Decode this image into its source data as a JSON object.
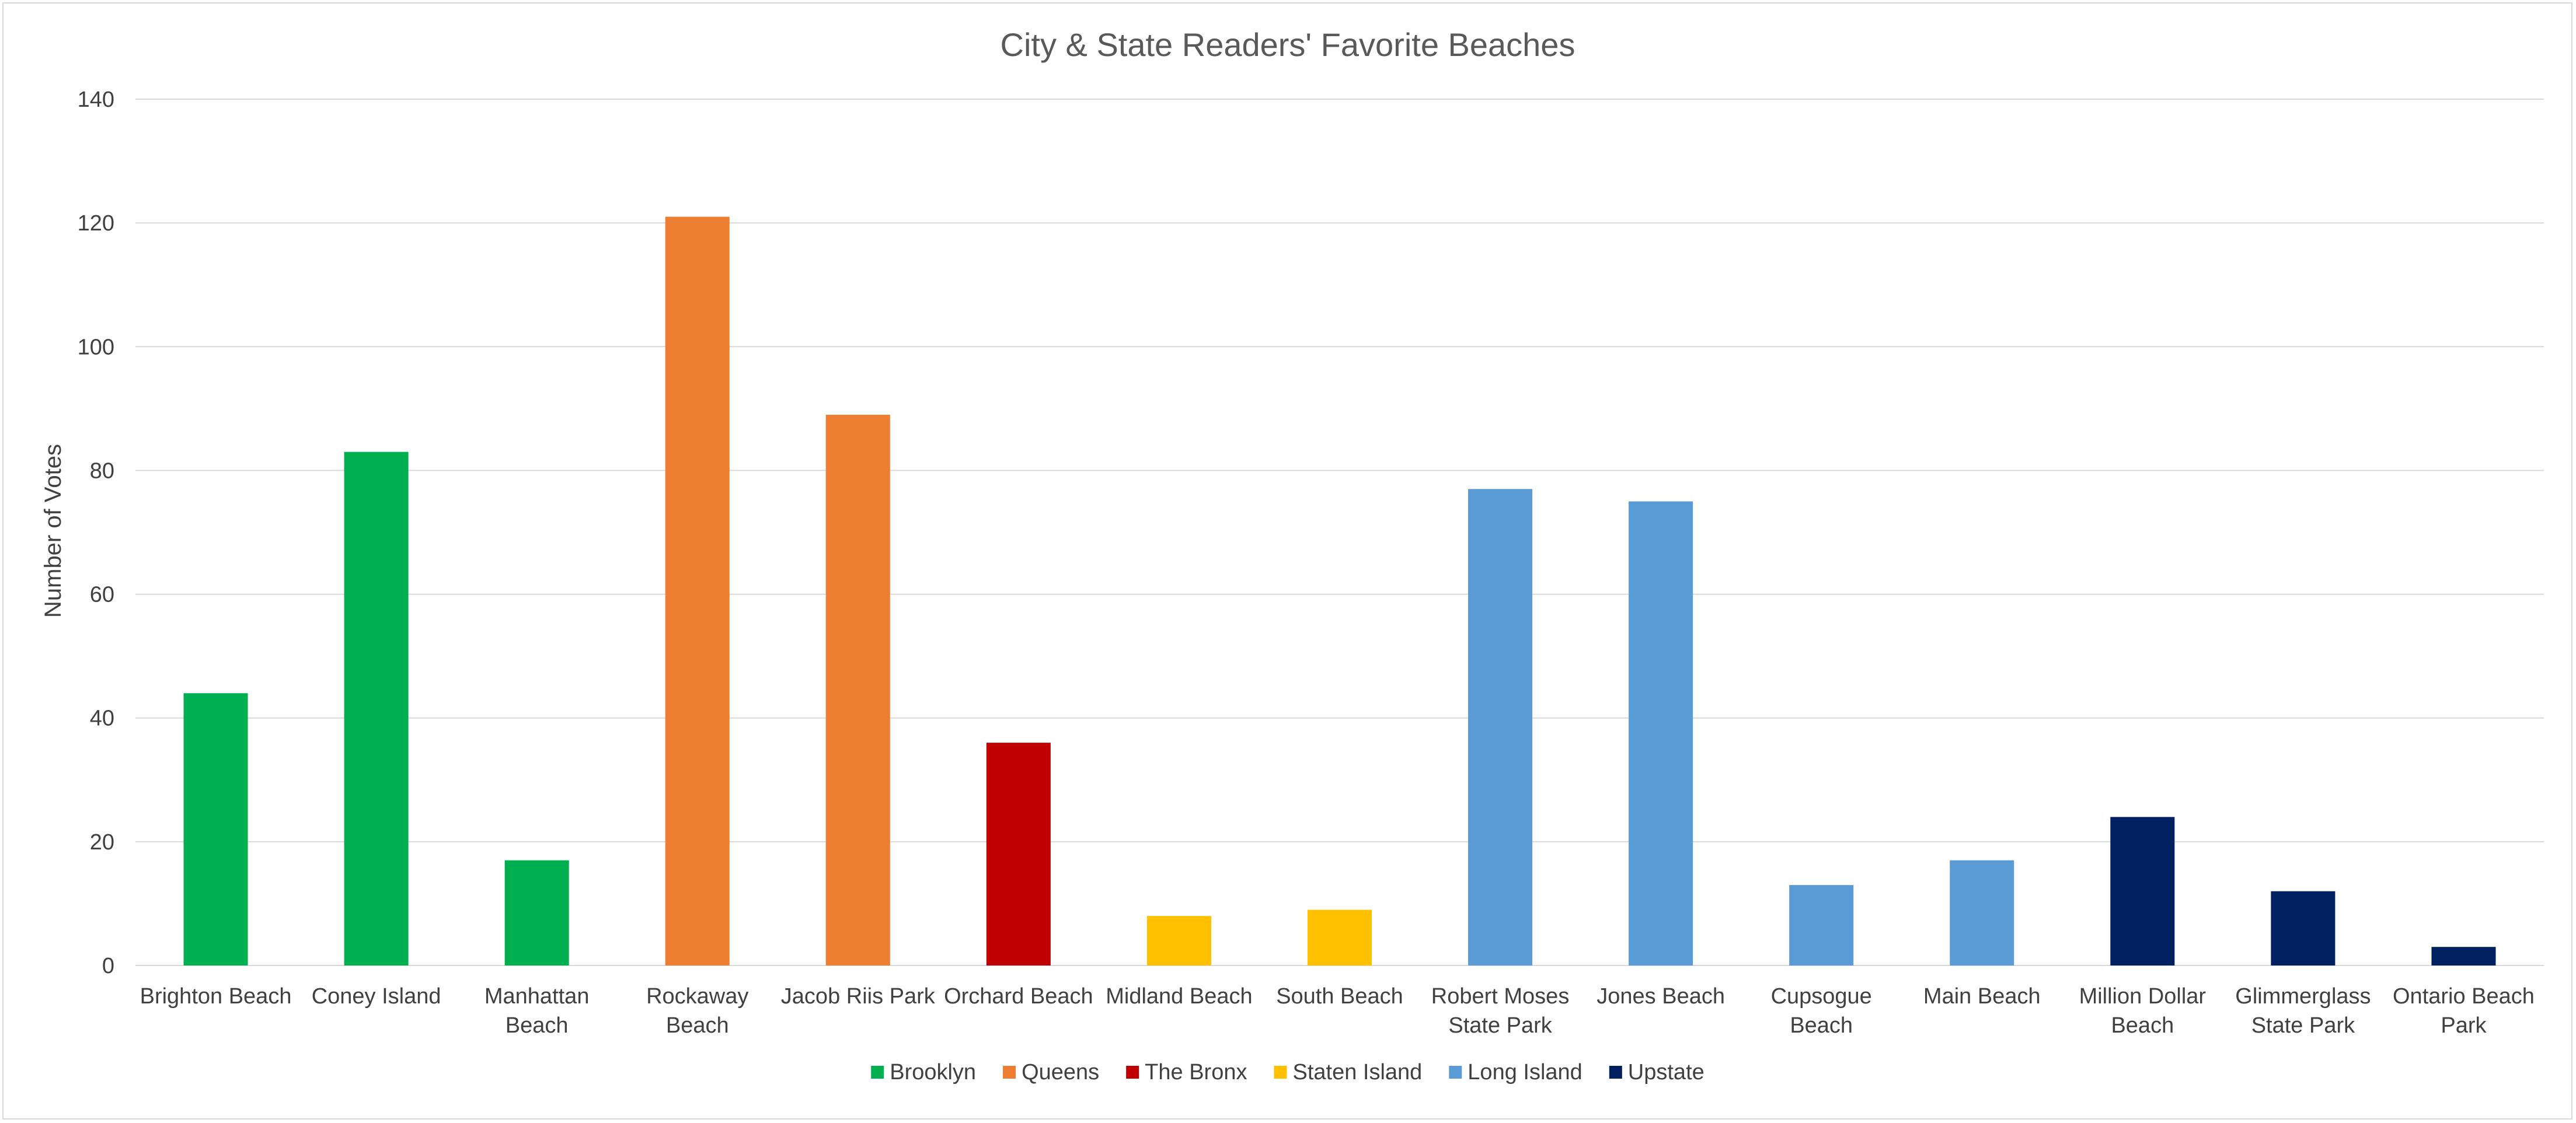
{
  "chart_data": {
    "type": "bar",
    "title": "City & State Readers' Favorite Beaches",
    "xlabel": "",
    "ylabel": "Number of Votes",
    "ylim": [
      0,
      140
    ],
    "yticks": [
      0,
      20,
      40,
      60,
      80,
      100,
      120,
      140
    ],
    "grid": true,
    "legend_position": "bottom",
    "categories": [
      [
        "Brighton Beach"
      ],
      [
        "Coney Island"
      ],
      [
        "Manhattan",
        "Beach"
      ],
      [
        "Rockaway",
        "Beach"
      ],
      [
        "Jacob Riis Park"
      ],
      [
        "Orchard Beach"
      ],
      [
        "Midland Beach"
      ],
      [
        "South Beach"
      ],
      [
        "Robert Moses",
        "State Park"
      ],
      [
        "Jones Beach"
      ],
      [
        "Cupsogue",
        "Beach"
      ],
      [
        "Main Beach"
      ],
      [
        "Million Dollar",
        "Beach"
      ],
      [
        "Glimmerglass",
        "State Park"
      ],
      [
        "Ontario Beach",
        "Park"
      ]
    ],
    "values": [
      44,
      83,
      17,
      121,
      89,
      36,
      8,
      9,
      77,
      75,
      13,
      17,
      24,
      12,
      3
    ],
    "groups": [
      "Brooklyn",
      "Brooklyn",
      "Brooklyn",
      "Queens",
      "Queens",
      "The Bronx",
      "Staten Island",
      "Staten Island",
      "Long Island",
      "Long Island",
      "Long Island",
      "Long Island",
      "Upstate",
      "Upstate",
      "Upstate"
    ],
    "legend": [
      {
        "name": "Brooklyn",
        "color": "#00b050"
      },
      {
        "name": "Queens",
        "color": "#ed7d31"
      },
      {
        "name": "The Bronx",
        "color": "#c00000"
      },
      {
        "name": "Staten Island",
        "color": "#ffc000"
      },
      {
        "name": "Long Island",
        "color": "#5b9bd5"
      },
      {
        "name": "Upstate",
        "color": "#002060"
      }
    ]
  }
}
